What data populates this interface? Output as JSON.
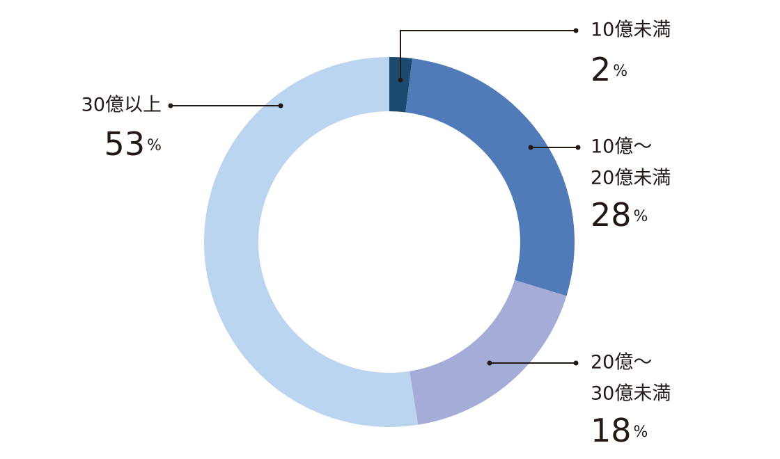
{
  "chart_data": {
    "type": "donut",
    "categories": [
      [
        "10億未満"
      ],
      [
        "10億〜",
        "20億未満"
      ],
      [
        "20億〜",
        "30億未満"
      ],
      [
        "30億以上"
      ]
    ],
    "values": [
      2,
      28,
      18,
      53
    ],
    "value_unit": "%",
    "colors": [
      "#1b4a6e",
      "#517bb8",
      "#a5acd7",
      "#bbd4ef"
    ]
  }
}
